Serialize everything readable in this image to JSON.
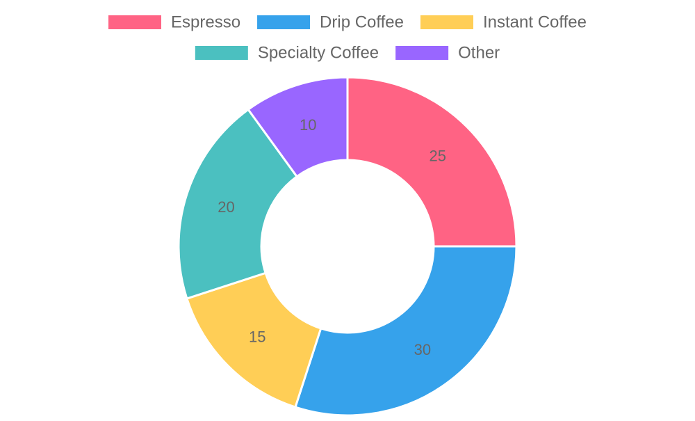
{
  "chart_data": {
    "type": "pie",
    "variant": "doughnut",
    "categories": [
      "Espresso",
      "Drip Coffee",
      "Instant Coffee",
      "Specialty Coffee",
      "Other"
    ],
    "values": [
      25,
      30,
      15,
      20,
      10
    ],
    "colors": [
      "#ff6384",
      "#36a2eb",
      "#ffce56",
      "#4bc0c0",
      "#9966ff"
    ],
    "title": "",
    "legend_position": "top",
    "data_labels": "values"
  }
}
